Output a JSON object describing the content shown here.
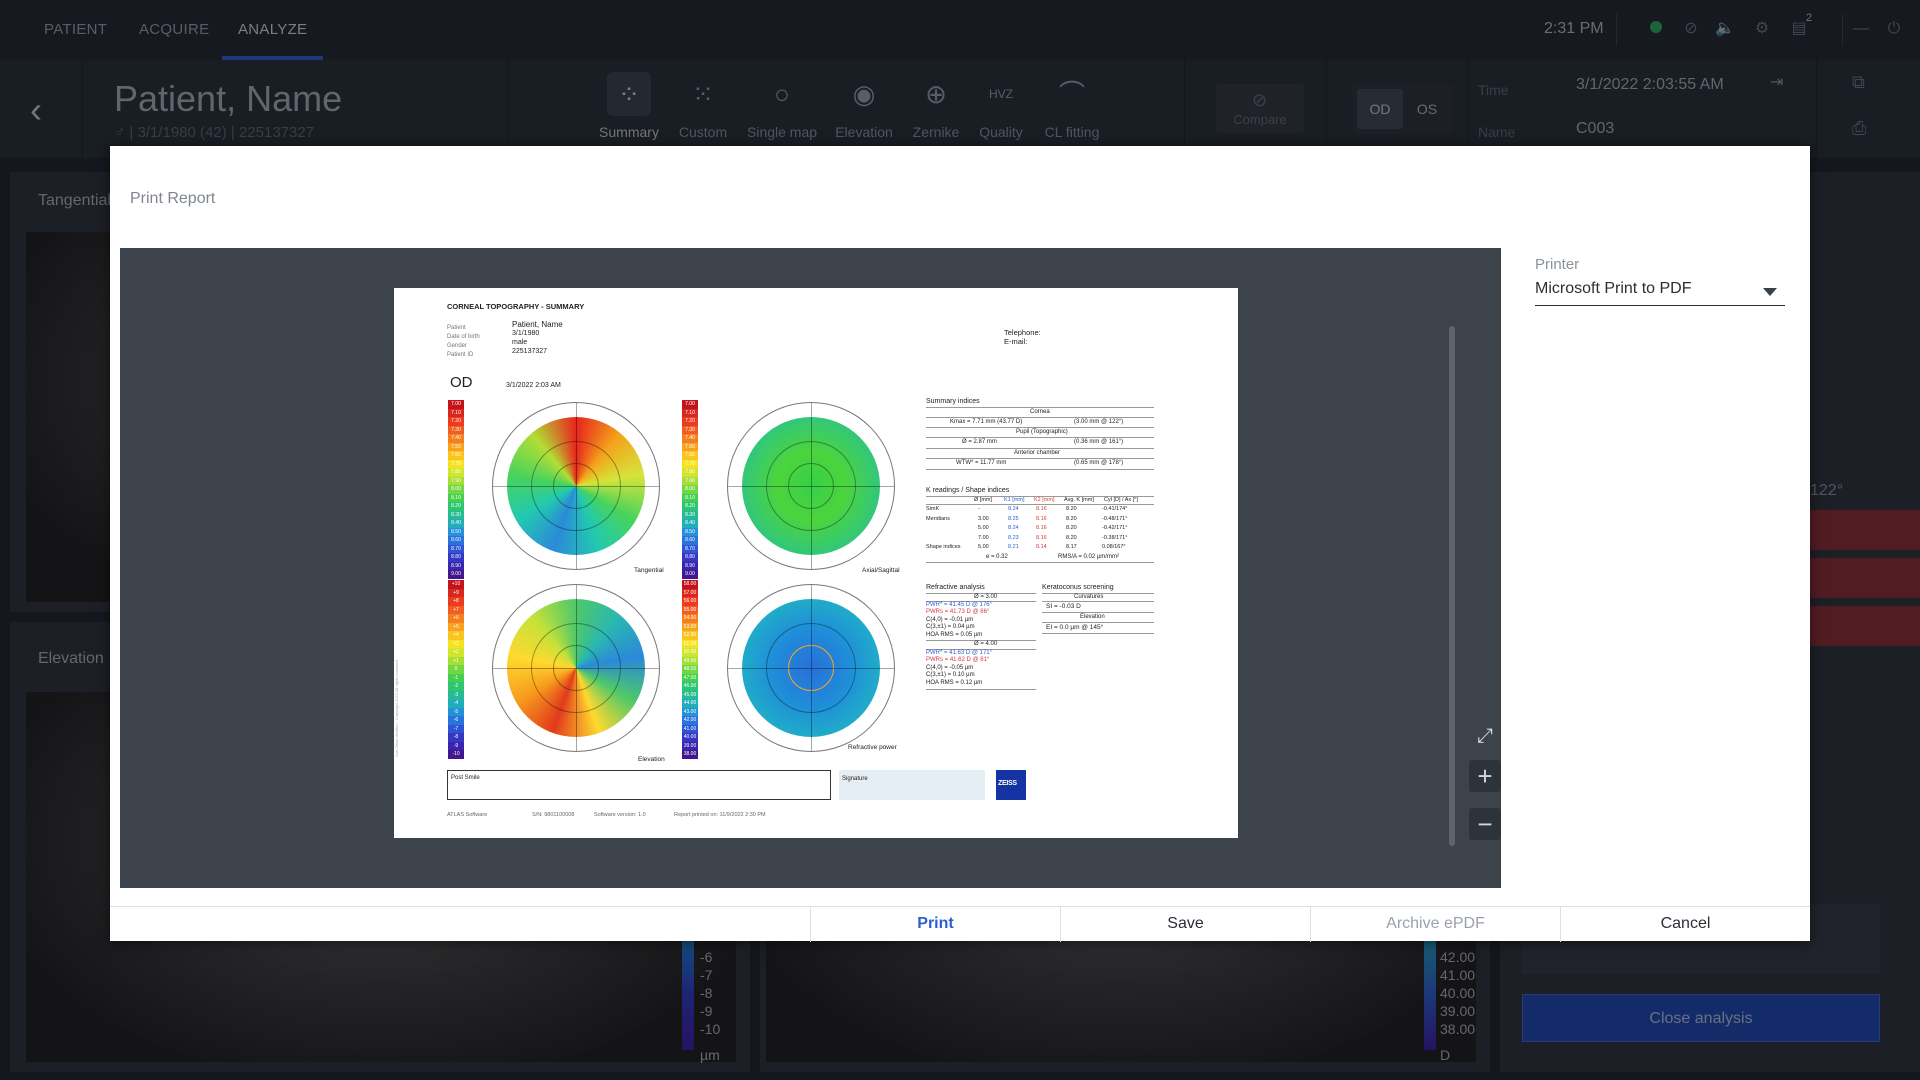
{
  "nav": {
    "tabs": [
      {
        "label": "PATIENT"
      },
      {
        "label": "ACQUIRE"
      },
      {
        "label": "ANALYZE"
      }
    ],
    "clock": "2:31 PM",
    "notification_count": "2"
  },
  "header": {
    "patient_name": "Patient, Name",
    "patient_sub": "♂ | 3/1/1980 (42) | 225137327",
    "modes": [
      {
        "label": "Summary",
        "icon": "summary-grid-icon"
      },
      {
        "label": "Custom",
        "icon": "custom-grid-icon"
      },
      {
        "label": "Single map",
        "icon": "single-map-icon"
      },
      {
        "label": "Elevation",
        "icon": "elevation-icon"
      },
      {
        "label": "Zernike",
        "icon": "zernike-icon"
      },
      {
        "label": "Quality",
        "icon": "quality-icon"
      },
      {
        "label": "CL fitting",
        "icon": "cl-fitting-icon"
      }
    ],
    "compare_label": "Compare",
    "eyes": [
      "OD",
      "OS"
    ],
    "time_label": "Time",
    "time_value": "3/1/2022 2:03:55 AM",
    "name_label": "Name",
    "name_value": "C003"
  },
  "background": {
    "panel_top_title": "Tangential",
    "panel_bottom_title": "Elevation",
    "left_scale_values": [
      "-6",
      "-7",
      "-8",
      "-9",
      "-10"
    ],
    "left_scale_unit": "µm",
    "right_scale_values": [
      "42.00",
      "41.00",
      "40.00",
      "39.00",
      "38.00"
    ],
    "right_scale_unit": "D",
    "side_value": "122°",
    "close_analysis": "Close analysis"
  },
  "modal": {
    "title": "Print Report",
    "printer_label": "Printer",
    "printer_value": "Microsoft Print to PDF",
    "buttons": {
      "print": "Print",
      "save": "Save",
      "archive": "Archive ePDF",
      "cancel": "Cancel"
    },
    "colors": {
      "accent": "#2e5fd1",
      "disabled": "#9aa1ab"
    }
  },
  "report": {
    "title": "CORNEAL TOPOGRAPHY - SUMMARY",
    "patient_fields": [
      {
        "k": "Patient",
        "v": "Patient, Name"
      },
      {
        "k": "Date of birth",
        "v": "3/1/1980"
      },
      {
        "k": "Gender",
        "v": "male"
      },
      {
        "k": "Patient ID",
        "v": "225137327"
      }
    ],
    "telephone": "Telephone:",
    "email": "E-mail:",
    "eye": "OD",
    "exam_date": "3/1/2022 2:03 AM",
    "map_labels": [
      "Tangential",
      "Axial/Sagittal",
      "Elevation",
      "Refractive power"
    ],
    "summary_title": "Summary indices",
    "cornea_title": "Cornea",
    "kmax": "Kmax = 7.71 mm (43.77 D)",
    "kmax_pos": "(3.00 mm @ 122°)",
    "pupil_title": "Pupil (Topographic)",
    "pupil": "Ø = 2.87 mm",
    "pupil_pos": "(0.36 mm @ 161°)",
    "ac_title": "Anterior chamber",
    "wtw": "WTW* = 11.77 mm",
    "wtw_pos": "(0.65 mm @ 178°)",
    "k_title": "K readings / Shape indices",
    "k_header": [
      "Ø [mm]",
      "K1 [mm]",
      "K2 [mm]",
      "Avg. K [mm]",
      "Cyl [D] / Ax [°]"
    ],
    "k_rows": [
      {
        "name": "SimK",
        "d": "-",
        "k1": "8.24",
        "k2": "8.16",
        "avg": "8.20",
        "cyl": "-0.41/174°"
      },
      {
        "name": "Meridians",
        "d": "3.00",
        "k1": "8.25",
        "k2": "8.16",
        "avg": "8.20",
        "cyl": "-0.48/171°"
      },
      {
        "name": "",
        "d": "5.00",
        "k1": "8.24",
        "k2": "8.16",
        "avg": "8.20",
        "cyl": "-0.42/171°"
      },
      {
        "name": "",
        "d": "7.00",
        "k1": "8.23",
        "k2": "8.16",
        "avg": "8.20",
        "cyl": "-0.38/171°"
      },
      {
        "name": "Shape indices",
        "d": "5.00",
        "k1": "8.21",
        "k2": "8.14",
        "avg": "8.17",
        "cyl": "0.08/167°"
      }
    ],
    "shape_extra_1": "e = 0.32",
    "shape_extra_2": "RMS/A = 0.02 µm/mm²",
    "refr_title": "Refractive analysis",
    "refr_group1_title": "Ø = 3.00",
    "refr_group1": [
      "PWR* = 41.45 D @ 176°",
      "PWRs = 41.73 D @ 86°",
      "C(4,0) = -0.01 µm",
      "C(3,±1) = 0.04 µm",
      "HOA RMS = 0.05 µm"
    ],
    "refr_group2_title": "Ø = 4.00",
    "refr_group2": [
      "PWR* = 41.63 D @ 171°",
      "PWRs = 41.62 D @ 81°",
      "C(4,0) = -0.05 µm",
      "C(3,±1) = 0.10 µm",
      "HOA RMS = 0.12 µm"
    ],
    "kc_title": "Keratoconus screening",
    "kc_curv_title": "Curvatures",
    "kc_si": "SI = -0.03 D",
    "kc_elev_title": "Elevation",
    "kc_ei": "EI = 0.0 µm @ 145°",
    "notes_label": "Post Smile",
    "signature_label": "Signature",
    "logo_text": "ZEISS",
    "footer_software": "ATLAS Software",
    "footer_sn": "S/N: 9801100008",
    "footer_version": "Software version: 1.0",
    "footer_printed": "Report printed on: 11/9/2022 2:30 PM",
    "side_copyright": "Carl Zeiss Meditec · Copyright 2022 All rights reserved",
    "legend_curvature": [
      "7.00",
      "7.10",
      "7.20",
      "7.30",
      "7.40",
      "7.50",
      "7.60",
      "7.70",
      "7.80",
      "7.90",
      "8.00",
      "8.10",
      "8.20",
      "8.30",
      "8.40",
      "8.50",
      "8.60",
      "8.70",
      "8.80",
      "8.90",
      "9.00"
    ],
    "legend_elevation": [
      "+10",
      "+9",
      "+8",
      "+7",
      "+6",
      "+5",
      "+4",
      "+3",
      "+2",
      "+1",
      "0",
      "-1",
      "-2",
      "-3",
      "-4",
      "-5",
      "-6",
      "-7",
      "-8",
      "-9",
      "-10"
    ],
    "legend_power": [
      "58.00",
      "57.00",
      "56.00",
      "55.00",
      "54.00",
      "53.00",
      "52.00",
      "51.00",
      "50.00",
      "49.00",
      "48.00",
      "47.00",
      "46.00",
      "45.00",
      "44.00",
      "43.00",
      "42.00",
      "41.00",
      "40.00",
      "39.00",
      "38.00"
    ]
  }
}
